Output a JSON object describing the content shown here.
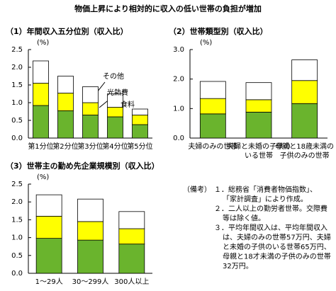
{
  "title": "物価上昇により相対的に収入の低い世帯の負担が増加",
  "chart_data": [
    {
      "type": "bar",
      "stacked": true,
      "title": "（1）年間収入五分位別（収入比）",
      "unit": "(%)",
      "categories": [
        [
          "第1分位"
        ],
        [
          "第2分位"
        ],
        [
          "第3分位"
        ],
        [
          "第4分位"
        ],
        [
          "第5分位"
        ]
      ],
      "series": [
        {
          "name": "食料",
          "color": "#6ab42d",
          "values": [
            0.92,
            0.77,
            0.65,
            0.6,
            0.38
          ]
        },
        {
          "name": "光熱費",
          "color": "#ffff00",
          "values": [
            0.63,
            0.5,
            0.35,
            0.27,
            0.27
          ]
        },
        {
          "name": "その他",
          "color": "#ffffff",
          "values": [
            0.63,
            0.48,
            0.45,
            0.38,
            0.17
          ]
        }
      ],
      "ylim": [
        0,
        2.5
      ],
      "yticks": [
        {
          "value": 0,
          "label": "0.0"
        },
        0.5,
        {
          "value": 1,
          "label": "1.0"
        },
        1.5,
        {
          "value": 2,
          "label": "2.0"
        },
        2.5
      ]
    },
    {
      "type": "bar",
      "stacked": true,
      "title": "（2）世帯類型別（収入比）",
      "unit": "(%)",
      "categories": [
        [
          "夫婦のみの世帯"
        ],
        [
          "夫婦と未婚の子供の",
          "いる世帯"
        ],
        [
          "母親と18歳未満の",
          "子供のみの世帯"
        ]
      ],
      "series": [
        {
          "color": "#6ab42d",
          "values": [
            0.82,
            0.88,
            1.17
          ]
        },
        {
          "color": "#ffff00",
          "values": [
            0.52,
            0.42,
            0.78
          ]
        },
        {
          "color": "#ffffff",
          "values": [
            0.58,
            0.58,
            0.7
          ]
        }
      ],
      "ylim": [
        0,
        3
      ],
      "yticks": [
        {
          "value": 0,
          "label": "0.0"
        },
        {
          "value": 1,
          "label": "1.0"
        },
        {
          "value": 2,
          "label": "2.0"
        },
        {
          "value": 3,
          "label": "3.0"
        }
      ]
    },
    {
      "type": "bar",
      "stacked": true,
      "title": "（3）世帯主の勤め先企業規模別（収入比）",
      "unit": "(%)",
      "categories": [
        [
          "1～29人"
        ],
        [
          "30～299人"
        ],
        [
          "300人以上"
        ]
      ],
      "series": [
        {
          "color": "#6ab42d",
          "values": [
            0.98,
            0.93,
            0.82
          ]
        },
        {
          "color": "#ffff00",
          "values": [
            0.62,
            0.52,
            0.43
          ]
        },
        {
          "color": "#ffffff",
          "values": [
            0.6,
            0.63,
            0.48
          ]
        }
      ],
      "ylim": [
        0,
        2.5
      ],
      "yticks": [
        {
          "value": 0,
          "label": "0.0"
        },
        0.5,
        {
          "value": 1,
          "label": "1.0"
        },
        1.5,
        {
          "value": 2,
          "label": "2.0"
        },
        2.5
      ]
    }
  ],
  "notes": {
    "label": "（備考）",
    "items": [
      [
        "１．総務省「消費者物価指数」、",
        "「家計調査」により作成。"
      ],
      [
        "２．二人以上の勤労者世帯。交際費",
        "等は除く値。"
      ],
      [
        "３．平均年間収入は、平均年間収入",
        "は、夫婦のみの世帯57万円、夫婦",
        "と未婚の子供のいる世帯65万円、",
        "母親と18才未満の子供のみの世帯",
        "32万円。"
      ]
    ]
  }
}
